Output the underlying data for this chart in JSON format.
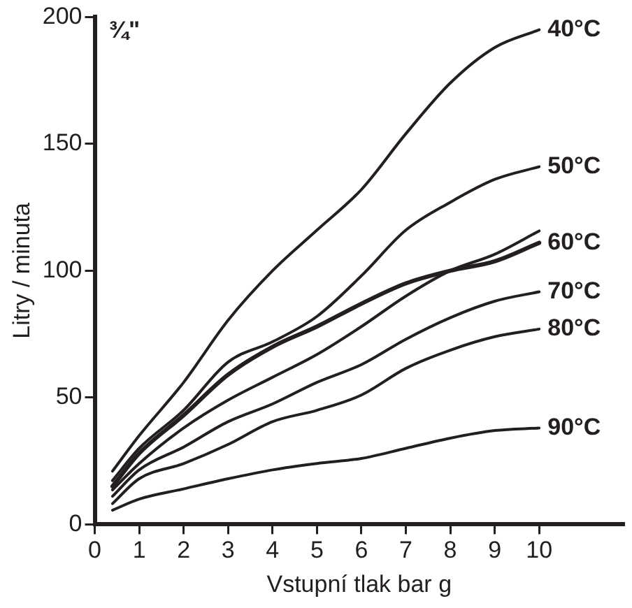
{
  "chart_data": {
    "type": "line",
    "xlabel": "Vstupní tlak bar g",
    "ylabel": "Litry / minuta",
    "annotations": [
      "¾\""
    ],
    "x": [
      0.4,
      1,
      2,
      3,
      4,
      5,
      6,
      7,
      8,
      9,
      10
    ],
    "series": [
      {
        "name": "40°C",
        "color": "#231f20",
        "values": [
          21,
          35,
          56,
          80.5,
          100,
          116,
          132,
          154,
          174,
          188,
          195
        ]
      },
      {
        "name": "50°C",
        "color": "#231f20",
        "values": [
          17.3,
          30,
          45,
          64,
          72,
          82,
          98,
          116,
          127,
          136,
          141
        ]
      },
      {
        "name": "60°C",
        "color": "#231f20",
        "values": [
          15,
          28,
          43,
          59,
          70,
          78,
          87,
          95,
          100,
          103.7,
          111
        ]
      },
      {
        "color": "#231f20",
        "values": [
          13.6,
          24,
          38,
          49,
          58,
          67,
          78,
          90,
          100,
          106.5,
          115.7
        ]
      },
      {
        "name": "70°C",
        "color": "#231f20",
        "values": [
          11.1,
          21.5,
          30.5,
          40.5,
          47.5,
          56,
          63,
          73,
          81.5,
          88,
          91.7
        ]
      },
      {
        "name": "80°C",
        "color": "#231f20",
        "values": [
          8.2,
          18,
          24,
          31.5,
          40.5,
          45,
          51,
          61.5,
          68.7,
          74,
          77
        ]
      },
      {
        "name": "90°C",
        "color": "#231f20",
        "values": [
          5.6,
          10,
          14,
          18,
          21.5,
          24,
          26,
          30,
          34,
          37,
          38
        ]
      }
    ],
    "xlim": [
      0,
      11.9
    ],
    "xticks": [
      0,
      1,
      2,
      3,
      4,
      5,
      6,
      7,
      8,
      9,
      10
    ],
    "ylim": [
      0,
      200
    ],
    "yticks": [
      0,
      50,
      100,
      150,
      200
    ],
    "grid": false,
    "legend": false,
    "marker": "none",
    "line_style": "solid"
  }
}
